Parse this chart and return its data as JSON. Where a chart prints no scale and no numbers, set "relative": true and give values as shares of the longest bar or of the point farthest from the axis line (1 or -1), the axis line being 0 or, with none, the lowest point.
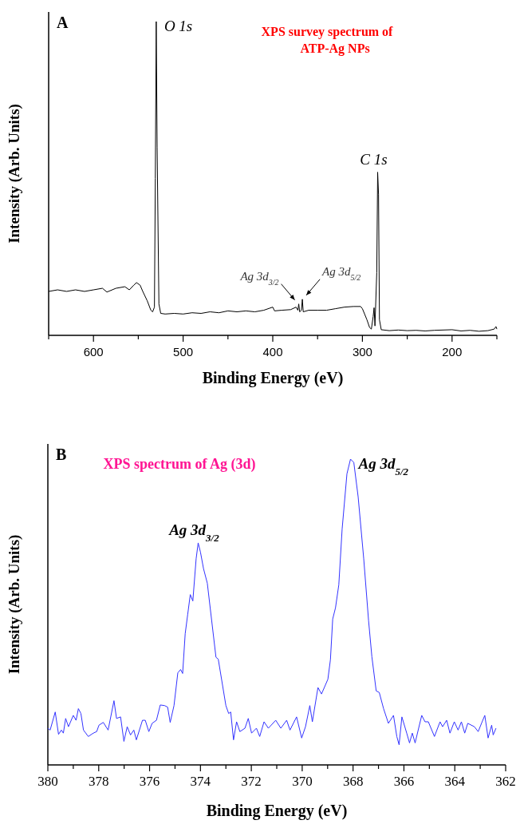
{
  "chart_data": [
    {
      "type": "line",
      "title": "XPS survey spectrum of ATP-Ag NPs",
      "xlabel": "Binding Energy (eV)",
      "ylabel": "Intensity (Arb. Units)",
      "relative": true,
      "xlim": [
        650,
        150
      ],
      "xticks": [
        {
          "value": 650,
          "label": null
        },
        600,
        {
          "value": 550,
          "label": null
        },
        500,
        {
          "value": 450,
          "label": null
        },
        400,
        {
          "value": 350,
          "label": null
        },
        300,
        {
          "value": 250,
          "label": null
        },
        200,
        {
          "value": 150,
          "label": null
        }
      ],
      "annotations": [
        "A",
        {
          "text": "O 1s",
          "x": 530,
          "y": 1.0
        },
        {
          "text": "C 1s",
          "x": 283,
          "y": 0.52
        },
        {
          "text": "Ag 3d$_{3/2}$",
          "x": 371,
          "y": 0.1
        },
        {
          "text": "Ag 3d$_{5/2}$",
          "x": 367,
          "y": 0.115
        }
      ],
      "series": [
        {
          "color": "#000000",
          "x": [
            650,
            640,
            630,
            620,
            610,
            600,
            590,
            585,
            575,
            565,
            560,
            555,
            552,
            548,
            545,
            540,
            536,
            534,
            532,
            531,
            530,
            529,
            527,
            525,
            520,
            510,
            500,
            490,
            480,
            470,
            460,
            450,
            440,
            430,
            420,
            410,
            400,
            398,
            390,
            380,
            374,
            372,
            371,
            370,
            368,
            367,
            366,
            360,
            350,
            340,
            330,
            320,
            310,
            302,
            300,
            295,
            292,
            290,
            288,
            287,
            286,
            284,
            283,
            282,
            281,
            279,
            270,
            260,
            250,
            240,
            230,
            220,
            200,
            190,
            180,
            170,
            160,
            153,
            151,
            150
          ],
          "values": [
            0.14,
            0.145,
            0.14,
            0.145,
            0.14,
            0.145,
            0.15,
            0.138,
            0.15,
            0.155,
            0.145,
            0.16,
            0.168,
            0.16,
            0.14,
            0.11,
            0.08,
            0.075,
            0.09,
            0.5,
            1.0,
            0.6,
            0.1,
            0.07,
            0.068,
            0.07,
            0.068,
            0.072,
            0.07,
            0.075,
            0.072,
            0.078,
            0.075,
            0.078,
            0.075,
            0.08,
            0.09,
            0.078,
            0.08,
            0.082,
            0.09,
            0.08,
            0.1,
            0.075,
            0.08,
            0.115,
            0.075,
            0.08,
            0.08,
            0.08,
            0.085,
            0.09,
            0.092,
            0.092,
            0.085,
            0.05,
            0.025,
            0.02,
            0.06,
            0.088,
            0.03,
            0.2,
            0.52,
            0.45,
            0.05,
            0.018,
            0.015,
            0.017,
            0.015,
            0.016,
            0.014,
            0.016,
            0.018,
            0.014,
            0.016,
            0.013,
            0.015,
            0.02,
            0.028,
            0.02
          ]
        }
      ]
    },
    {
      "type": "line",
      "title": "XPS spectrum of Ag (3d)",
      "xlabel": "Binding Energy (eV)",
      "ylabel": "Intensity (Arb. Units)",
      "relative": true,
      "xlim": [
        380,
        362
      ],
      "xticks": [
        380,
        {
          "value": 379,
          "label": null
        },
        378,
        {
          "value": 377,
          "label": null
        },
        376,
        {
          "value": 375,
          "label": null
        },
        374,
        {
          "value": 373,
          "label": null
        },
        372,
        {
          "value": 371,
          "label": null
        },
        370,
        {
          "value": 369,
          "label": null
        },
        368,
        {
          "value": 367,
          "label": null
        },
        366,
        {
          "value": 365,
          "label": null
        },
        364,
        {
          "value": 363,
          "label": null
        },
        362
      ],
      "annotations": [
        "B",
        {
          "text": "Ag 3d$_{3/2}$",
          "x": 374.09,
          "y": 0.726
        },
        {
          "text": "Ag 3d$_{5/2}$",
          "x": 368.1,
          "y": 1.0
        }
      ],
      "series": [
        {
          "color": "#3333ff",
          "x": [
            380.0,
            379.91,
            379.71,
            379.58,
            379.47,
            379.39,
            379.3,
            379.19,
            379.0,
            378.89,
            378.8,
            378.7,
            378.6,
            378.41,
            378.21,
            378.08,
            377.99,
            377.82,
            377.63,
            377.4,
            377.3,
            377.14,
            377.01,
            376.88,
            376.75,
            376.62,
            376.52,
            376.28,
            376.17,
            376.03,
            375.9,
            375.73,
            375.58,
            375.41,
            375.29,
            375.19,
            375.04,
            374.89,
            374.78,
            374.7,
            374.6,
            374.5,
            374.4,
            374.3,
            374.17,
            374.09,
            374.0,
            373.88,
            373.73,
            373.39,
            373.3,
            373.0,
            372.89,
            372.81,
            372.7,
            372.58,
            372.45,
            372.25,
            372.12,
            371.99,
            371.8,
            371.67,
            371.5,
            371.33,
            371.04,
            370.84,
            370.61,
            370.48,
            370.22,
            370.02,
            369.87,
            369.7,
            369.6,
            369.38,
            369.24,
            368.99,
            368.89,
            368.8,
            368.69,
            368.56,
            368.43,
            368.24,
            368.1,
            367.97,
            367.8,
            367.58,
            367.39,
            367.26,
            367.09,
            366.97,
            366.8,
            366.61,
            366.41,
            366.28,
            366.19,
            366.08,
            365.89,
            365.78,
            365.67,
            365.56,
            365.3,
            365.17,
            365.04,
            364.8,
            364.58,
            364.48,
            364.32,
            364.19,
            364.02,
            363.87,
            363.74,
            363.61,
            363.49,
            363.23,
            363.08,
            362.95,
            362.82,
            362.69,
            362.55,
            362.49,
            362.38
          ],
          "values": [
            0.12,
            0.114,
            0.173,
            0.1,
            0.114,
            0.104,
            0.152,
            0.125,
            0.162,
            0.146,
            0.184,
            0.168,
            0.114,
            0.093,
            0.104,
            0.109,
            0.13,
            0.139,
            0.114,
            0.21,
            0.152,
            0.157,
            0.077,
            0.125,
            0.098,
            0.114,
            0.082,
            0.146,
            0.146,
            0.109,
            0.136,
            0.146,
            0.196,
            0.194,
            0.189,
            0.139,
            0.194,
            0.301,
            0.312,
            0.299,
            0.429,
            0.493,
            0.557,
            0.536,
            0.674,
            0.726,
            0.696,
            0.642,
            0.594,
            0.352,
            0.346,
            0.194,
            0.168,
            0.173,
            0.082,
            0.141,
            0.109,
            0.12,
            0.152,
            0.104,
            0.12,
            0.093,
            0.141,
            0.12,
            0.146,
            0.12,
            0.146,
            0.114,
            0.157,
            0.088,
            0.125,
            0.194,
            0.141,
            0.253,
            0.232,
            0.28,
            0.344,
            0.477,
            0.514,
            0.589,
            0.771,
            0.952,
            1.0,
            0.989,
            0.877,
            0.674,
            0.472,
            0.354,
            0.242,
            0.237,
            0.184,
            0.136,
            0.162,
            0.093,
            0.066,
            0.157,
            0.104,
            0.072,
            0.104,
            0.072,
            0.162,
            0.141,
            0.141,
            0.093,
            0.141,
            0.125,
            0.146,
            0.104,
            0.141,
            0.114,
            0.141,
            0.104,
            0.136,
            0.125,
            0.109,
            0.136,
            0.162,
            0.088,
            0.13,
            0.098,
            0.12
          ]
        }
      ]
    }
  ]
}
